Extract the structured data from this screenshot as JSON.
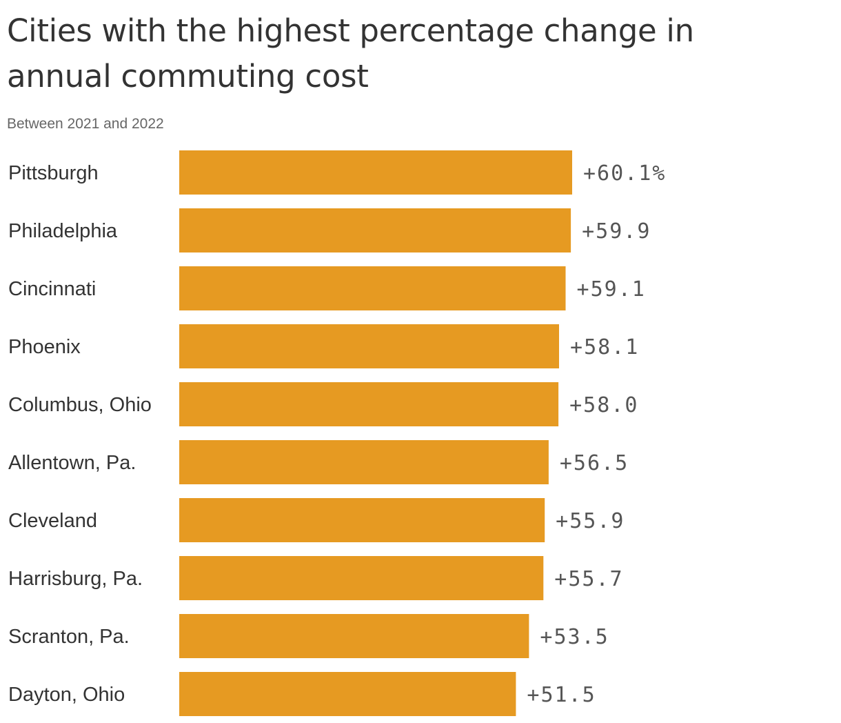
{
  "title": "Cities with the highest percentage change in annual commuting cost",
  "subtitle": "Between 2021 and 2022",
  "colors": {
    "bar": "#e69a22",
    "text": "#333333",
    "subtitle": "#666666",
    "value_label": "#555555"
  },
  "chart_data": {
    "type": "bar",
    "orientation": "horizontal",
    "categories": [
      "Pittsburgh",
      "Philadelphia",
      "Cincinnati",
      "Phoenix",
      "Columbus, Ohio",
      "Allentown, Pa.",
      "Cleveland",
      "Harrisburg, Pa.",
      "Scranton, Pa.",
      "Dayton, Ohio"
    ],
    "values": [
      60.1,
      59.9,
      59.1,
      58.1,
      58.0,
      56.5,
      55.9,
      55.7,
      53.5,
      51.5
    ],
    "data_labels": [
      "+60.1%",
      "+59.9",
      "+59.1",
      "+58.1",
      "+58.0",
      "+56.5",
      "+55.9",
      "+55.7",
      "+53.5",
      "+51.5"
    ],
    "title": "Cities with the highest percentage change in annual commuting cost",
    "subtitle": "Between 2021 and 2022",
    "xlim": [
      0,
      60.1
    ],
    "grid": false,
    "legend": "none"
  }
}
